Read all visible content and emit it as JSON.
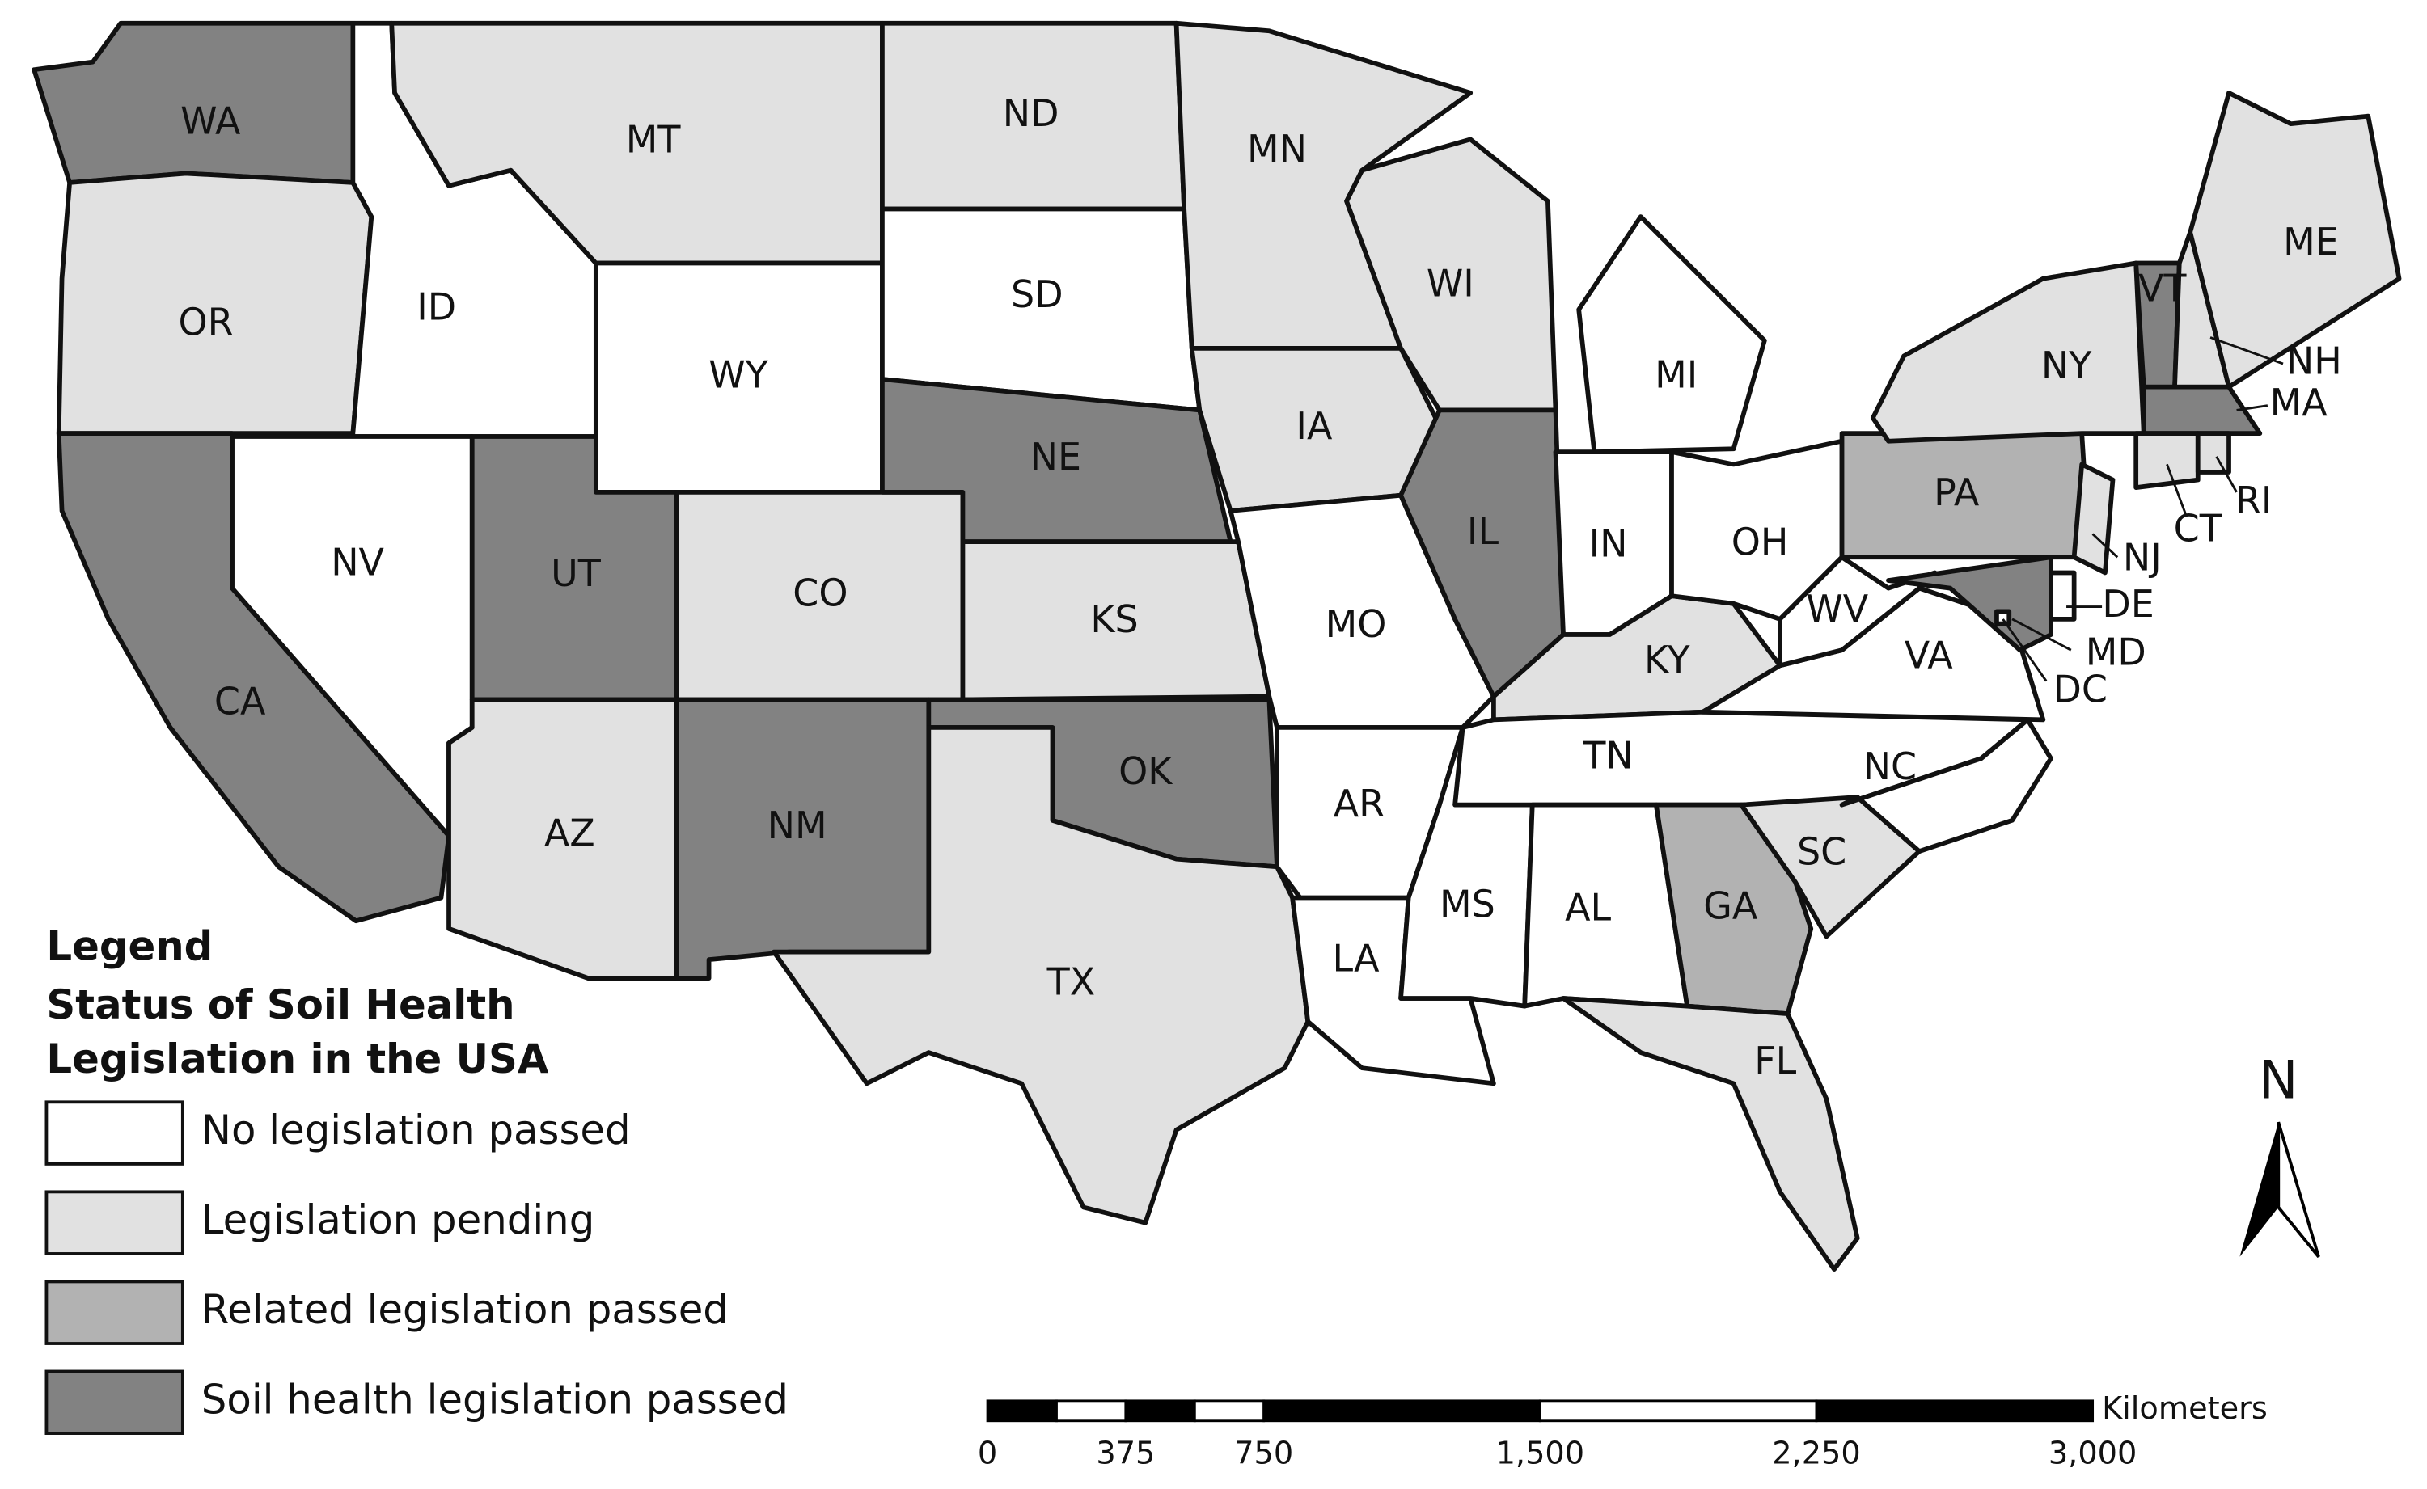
{
  "legend": {
    "title": "Legend",
    "subtitle_lines": [
      "Status of Soil Health",
      "Legislation in the USA"
    ],
    "items": [
      {
        "label": "No legislation passed",
        "color": "#ffffff"
      },
      {
        "label": "Legislation pending",
        "color": "#e1e1e1"
      },
      {
        "label": "Related legislation passed",
        "color": "#b2b2b2"
      },
      {
        "label": "Soil health legislation passed",
        "color": "#828282"
      }
    ]
  },
  "states": [
    {
      "label": "WA",
      "status": 3
    },
    {
      "label": "OR",
      "status": 1
    },
    {
      "label": "CA",
      "status": 3
    },
    {
      "label": "ID",
      "status": 0
    },
    {
      "label": "NV",
      "status": 0
    },
    {
      "label": "MT",
      "status": 1
    },
    {
      "label": "WY",
      "status": 0
    },
    {
      "label": "UT",
      "status": 3
    },
    {
      "label": "AZ",
      "status": 1
    },
    {
      "label": "CO",
      "status": 1
    },
    {
      "label": "NM",
      "status": 3
    },
    {
      "label": "ND",
      "status": 1
    },
    {
      "label": "SD",
      "status": 0
    },
    {
      "label": "NE",
      "status": 3
    },
    {
      "label": "KS",
      "status": 1
    },
    {
      "label": "OK",
      "status": 3
    },
    {
      "label": "TX",
      "status": 1
    },
    {
      "label": "MN",
      "status": 1
    },
    {
      "label": "IA",
      "status": 1
    },
    {
      "label": "MO",
      "status": 0
    },
    {
      "label": "AR",
      "status": 0
    },
    {
      "label": "LA",
      "status": 0
    },
    {
      "label": "WI",
      "status": 1
    },
    {
      "label": "IL",
      "status": 3
    },
    {
      "label": "MS",
      "status": 0
    },
    {
      "label": "MI",
      "status": 0
    },
    {
      "label": "IN",
      "status": 0
    },
    {
      "label": "KY",
      "status": 1
    },
    {
      "label": "TN",
      "status": 0
    },
    {
      "label": "AL",
      "status": 0
    },
    {
      "label": "OH",
      "status": 0
    },
    {
      "label": "GA",
      "status": 2
    },
    {
      "label": "FL",
      "status": 1
    },
    {
      "label": "SC",
      "status": 1
    },
    {
      "label": "NC",
      "status": 0
    },
    {
      "label": "VA",
      "status": 0
    },
    {
      "label": "WV",
      "status": 0
    },
    {
      "label": "PA",
      "status": 2
    },
    {
      "label": "NY",
      "status": 1
    },
    {
      "label": "VT",
      "status": 3
    },
    {
      "label": "NH",
      "status": 1
    },
    {
      "label": "ME",
      "status": 1
    },
    {
      "label": "MA",
      "status": 3
    },
    {
      "label": "CT",
      "status": 1
    },
    {
      "label": "RI",
      "status": 1
    },
    {
      "label": "NJ",
      "status": 1
    },
    {
      "label": "DE",
      "status": 0
    },
    {
      "label": "MD",
      "status": 3
    },
    {
      "label": "DC",
      "status": 0
    }
  ],
  "scale_bar": {
    "unit": "Kilometers",
    "ticks": [
      0,
      375,
      750,
      {
        "value": 1500,
        "label": "1,500"
      },
      {
        "value": 2250,
        "label": "2,250"
      },
      {
        "value": 3000,
        "label": "3,000"
      }
    ]
  },
  "north_arrow": {
    "label": "N"
  }
}
